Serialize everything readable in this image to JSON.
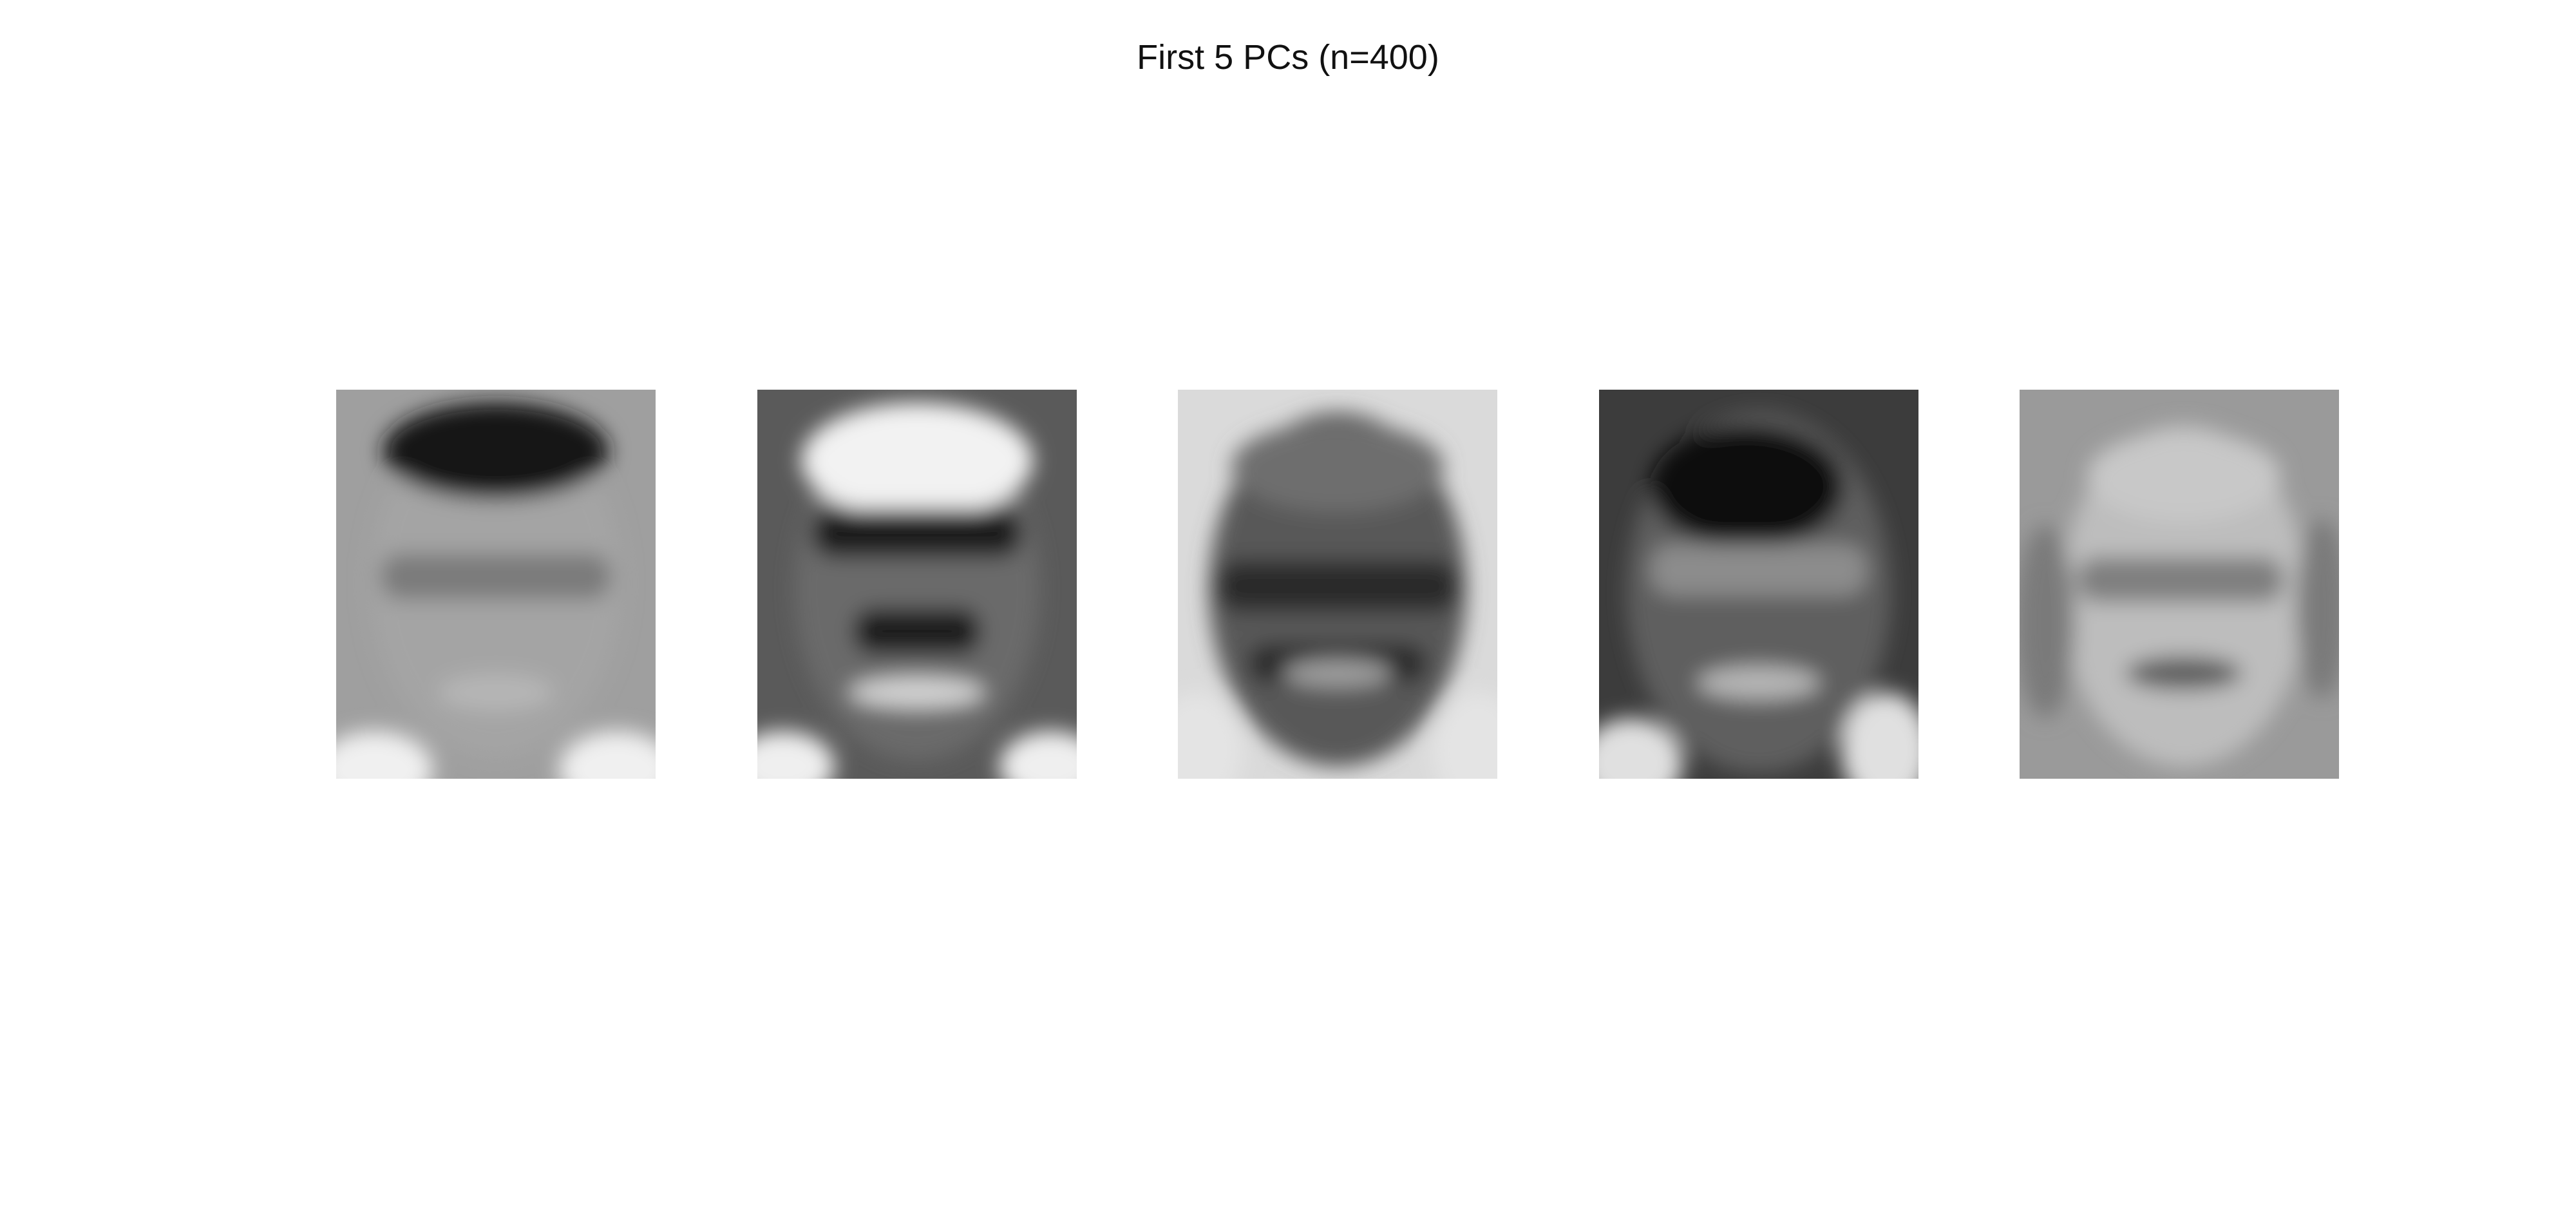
{
  "title": "First 5 PCs (n=400)",
  "panels": [
    {
      "id": "pc-1",
      "background": "#9f9f9f",
      "hair_tone": "#151515",
      "face_tone": "#a4a4a4",
      "band_tone": "#7a7a7a",
      "mouth_tone": "#b6b6b6",
      "collar_tone": "#f0f0f0"
    },
    {
      "id": "pc-2",
      "background": "#5a5a5a",
      "hair_tone": "#f2f2f2",
      "face_tone": "#6a6a6a",
      "band_tone": "#1e1e1e",
      "mouth_tone": "#d2d2d2",
      "collar_tone": "#efefef"
    },
    {
      "id": "pc-3",
      "background": "#dadada",
      "hair_tone": "#6e6e6e",
      "face_tone": "#585858",
      "band_tone": "#2a2a2a",
      "mouth_tone": "#9d9d9d",
      "collar_tone": "#e4e4e4"
    },
    {
      "id": "pc-4",
      "background": "#3c3c3c",
      "hair_tone": "#0f0f0f",
      "face_tone": "#5e5e5e",
      "band_tone": "#8c8c8c",
      "mouth_tone": "#b5b5b5",
      "collar_tone": "#e0e0e0"
    },
    {
      "id": "pc-5",
      "background": "#9a9a9a",
      "hair_tone": "#c8c8c8",
      "face_tone": "#bdbdbd",
      "band_tone": "#7f7f7f",
      "mouth_tone": "#5e5e5e",
      "collar_tone": "#7a7a7a"
    }
  ]
}
